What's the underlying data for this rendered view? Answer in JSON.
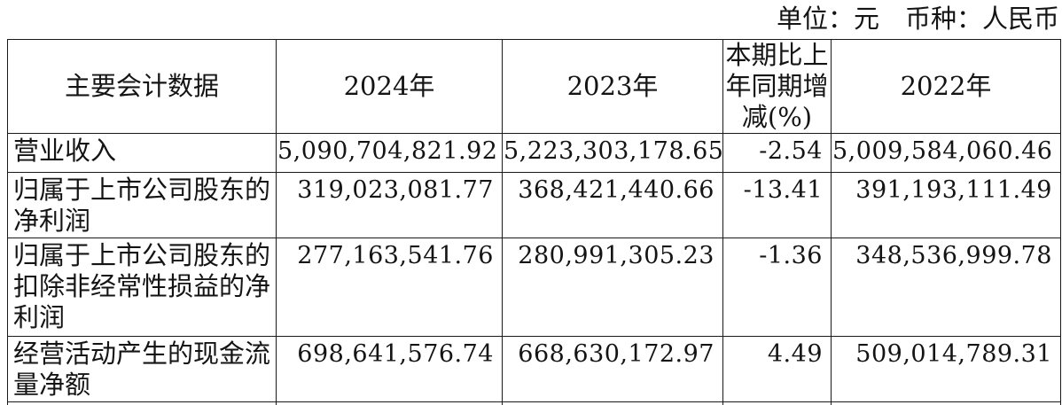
{
  "unit_note": "单位：元　币种：人民币",
  "table": {
    "headers": {
      "metric": "主要会计数据",
      "y2024": "2024年",
      "y2023": "2023年",
      "change": "本期比上年同期增减(%)",
      "y2022": "2022年"
    },
    "rows": [
      {
        "label": "营业收入",
        "y2024": "5,090,704,821.92",
        "y2023": "5,223,303,178.65",
        "change": "-2.54",
        "y2022": "5,009,584,060.46"
      },
      {
        "label": "归属于上市公司股东的净利润",
        "y2024": "319,023,081.77",
        "y2023": "368,421,440.66",
        "change": "-13.41",
        "y2022": "391,193,111.49"
      },
      {
        "label": "归属于上市公司股东的扣除非经常性损益的净利润",
        "y2024": "277,163,541.76",
        "y2023": "280,991,305.23",
        "change": "-1.36",
        "y2022": "348,536,999.78"
      },
      {
        "label": "经营活动产生的现金流量净额",
        "y2024": "698,641,576.74",
        "y2023": "668,630,172.97",
        "change": "4.49",
        "y2022": "509,014,789.31"
      }
    ]
  },
  "colors": {
    "background": "#ffffff",
    "text": "#141414",
    "border": "#1a1a1a"
  }
}
